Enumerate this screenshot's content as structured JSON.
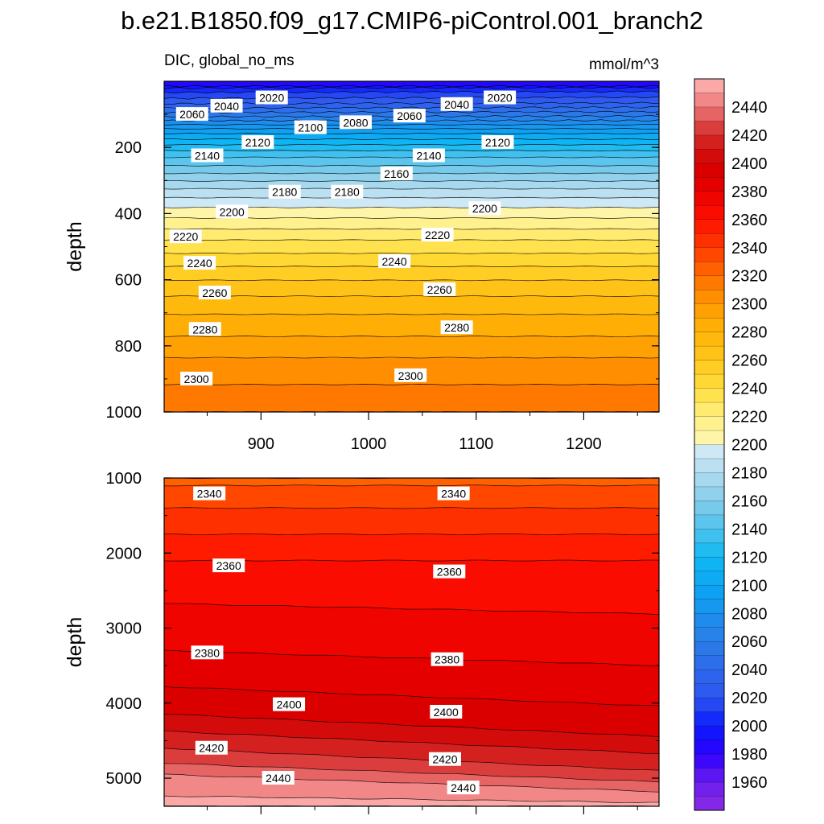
{
  "figure": {
    "title": "b.e21.B1850.f09_g17.CMIP6-piControl.001_branch2",
    "variable_label": "DIC, global_no_ms",
    "units": "mmol/m^3"
  },
  "chart_data": [
    {
      "type": "contour",
      "panel": "upper",
      "variable": "DIC, global_no_ms",
      "units": "mmol/m^3",
      "xlabel": "",
      "ylabel": "depth",
      "xlim": [
        810,
        1270
      ],
      "ylim": [
        1000,
        0
      ],
      "x_ticks": [
        900,
        1000,
        1100,
        1200
      ],
      "y_ticks": [
        200,
        400,
        600,
        800,
        1000
      ],
      "y_tick_labels": [
        "200",
        "400",
        "600",
        "800",
        "1000"
      ],
      "profile": {
        "depth": [
          15,
          25,
          40,
          60,
          80,
          100,
          125,
          150,
          175,
          200,
          230,
          260,
          290,
          325,
          360,
          400,
          440,
          480,
          520,
          560,
          610,
          660,
          710,
          760,
          800,
          850,
          900,
          950,
          1000
        ],
        "value": [
          1995,
          2005,
          2015,
          2025,
          2040,
          2055,
          2075,
          2095,
          2110,
          2125,
          2140,
          2152,
          2165,
          2180,
          2193,
          2206,
          2218,
          2230,
          2240,
          2250,
          2262,
          2272,
          2281,
          2288,
          2295,
          2302,
          2308,
          2314,
          2318
        ]
      },
      "contour_labels": [
        {
          "level": 2020,
          "x": 910,
          "depth": 50
        },
        {
          "level": 2040,
          "x": 868,
          "depth": 75
        },
        {
          "level": 2060,
          "x": 836,
          "depth": 100
        },
        {
          "level": 2020,
          "x": 1122,
          "depth": 50
        },
        {
          "level": 2040,
          "x": 1082,
          "depth": 70
        },
        {
          "level": 2060,
          "x": 1038,
          "depth": 105
        },
        {
          "level": 2080,
          "x": 988,
          "depth": 125
        },
        {
          "level": 2100,
          "x": 946,
          "depth": 140
        },
        {
          "level": 2120,
          "x": 1120,
          "depth": 185
        },
        {
          "level": 2120,
          "x": 897,
          "depth": 185
        },
        {
          "level": 2140,
          "x": 1056,
          "depth": 225
        },
        {
          "level": 2140,
          "x": 850,
          "depth": 225
        },
        {
          "level": 2160,
          "x": 1026,
          "depth": 280
        },
        {
          "level": 2180,
          "x": 922,
          "depth": 335
        },
        {
          "level": 2180,
          "x": 980,
          "depth": 335
        },
        {
          "level": 2200,
          "x": 1108,
          "depth": 385
        },
        {
          "level": 2200,
          "x": 873,
          "depth": 395
        },
        {
          "level": 2220,
          "x": 1064,
          "depth": 465
        },
        {
          "level": 2220,
          "x": 830,
          "depth": 470
        },
        {
          "level": 2240,
          "x": 1024,
          "depth": 545
        },
        {
          "level": 2240,
          "x": 843,
          "depth": 550
        },
        {
          "level": 2260,
          "x": 1066,
          "depth": 630
        },
        {
          "level": 2260,
          "x": 857,
          "depth": 640
        },
        {
          "level": 2280,
          "x": 1082,
          "depth": 745
        },
        {
          "level": 2280,
          "x": 848,
          "depth": 750
        },
        {
          "level": 2300,
          "x": 1039,
          "depth": 890
        },
        {
          "level": 2300,
          "x": 840,
          "depth": 900
        }
      ]
    },
    {
      "type": "contour",
      "panel": "lower",
      "variable": "DIC, global_no_ms",
      "units": "mmol/m^3",
      "xlabel": "",
      "ylabel": "depth",
      "xlim": [
        810,
        1270
      ],
      "ylim": [
        5375,
        1000
      ],
      "x_ticks": [
        900,
        1000,
        1100,
        1200
      ],
      "y_ticks": [
        1000,
        2000,
        3000,
        4000,
        5000
      ],
      "y_tick_labels": [
        "1000",
        "2000",
        "3000",
        "4000",
        "5000"
      ],
      "profile_left": {
        "depth": [
          1000,
          1100,
          1400,
          2100,
          2900,
          3300,
          3700,
          4100,
          4600,
          4800,
          4950,
          5100,
          5375
        ],
        "value": [
          2328,
          2330,
          2340,
          2360,
          2374,
          2380,
          2388,
          2398,
          2420,
          2430,
          2440,
          2448,
          2452
        ]
      },
      "profile_right": {
        "depth": [
          1000,
          1100,
          1400,
          2100,
          3100,
          3500,
          3950,
          4400,
          4900,
          5050,
          5180,
          5280,
          5375
        ],
        "value": [
          2328,
          2330,
          2340,
          2360,
          2374,
          2380,
          2388,
          2398,
          2420,
          2430,
          2440,
          2448,
          2452
        ]
      },
      "contour_labels": [
        {
          "level": 2340,
          "x": 852,
          "depth": 1210
        },
        {
          "level": 2340,
          "x": 1079,
          "depth": 1210
        },
        {
          "level": 2360,
          "x": 870,
          "depth": 2170
        },
        {
          "level": 2360,
          "x": 1075,
          "depth": 2250
        },
        {
          "level": 2380,
          "x": 850,
          "depth": 3330
        },
        {
          "level": 2380,
          "x": 1073,
          "depth": 3420
        },
        {
          "level": 2400,
          "x": 926,
          "depth": 4020
        },
        {
          "level": 2400,
          "x": 1072,
          "depth": 4120
        },
        {
          "level": 2420,
          "x": 854,
          "depth": 4600
        },
        {
          "level": 2420,
          "x": 1071,
          "depth": 4750
        },
        {
          "level": 2440,
          "x": 916,
          "depth": 5000
        },
        {
          "level": 2440,
          "x": 1088,
          "depth": 5130
        }
      ]
    }
  ],
  "colorbar": {
    "labels": [
      "2440",
      "2420",
      "2400",
      "2380",
      "2360",
      "2340",
      "2320",
      "2300",
      "2280",
      "2260",
      "2240",
      "2220",
      "2200",
      "2180",
      "2160",
      "2140",
      "2120",
      "2100",
      "2080",
      "2060",
      "2040",
      "2020",
      "2000",
      "1980",
      "1960"
    ],
    "label_values": [
      2440,
      2420,
      2400,
      2380,
      2360,
      2340,
      2320,
      2300,
      2280,
      2260,
      2240,
      2220,
      2200,
      2180,
      2160,
      2140,
      2120,
      2100,
      2080,
      2060,
      2040,
      2020,
      2000,
      1980,
      1960
    ],
    "vmin": 1940,
    "vmax": 2460,
    "interval": 10,
    "colors": [
      {
        "value": 1940,
        "color": "#8a2be2"
      },
      {
        "value": 1960,
        "color": "#6a1df0"
      },
      {
        "value": 1980,
        "color": "#2c00ff"
      },
      {
        "value": 2000,
        "color": "#0b1cff"
      },
      {
        "value": 2020,
        "color": "#2f55f0"
      },
      {
        "value": 2060,
        "color": "#2b7de8"
      },
      {
        "value": 2100,
        "color": "#0aa6f5"
      },
      {
        "value": 2120,
        "color": "#11b8f2"
      },
      {
        "value": 2140,
        "color": "#4ec2ee"
      },
      {
        "value": 2160,
        "color": "#86cde9"
      },
      {
        "value": 2180,
        "color": "#b0dcf0"
      },
      {
        "value": 2200,
        "color": "#d8ecf7"
      },
      {
        "value": 2201,
        "color": "#fff6b4"
      },
      {
        "value": 2220,
        "color": "#ffef80"
      },
      {
        "value": 2240,
        "color": "#ffdd3c"
      },
      {
        "value": 2260,
        "color": "#ffc81c"
      },
      {
        "value": 2280,
        "color": "#ffb406"
      },
      {
        "value": 2300,
        "color": "#ff9a00"
      },
      {
        "value": 2320,
        "color": "#ff6c00"
      },
      {
        "value": 2340,
        "color": "#ff3a00"
      },
      {
        "value": 2360,
        "color": "#ff1000"
      },
      {
        "value": 2380,
        "color": "#ea0000"
      },
      {
        "value": 2400,
        "color": "#d40000"
      },
      {
        "value": 2420,
        "color": "#d52a2a"
      },
      {
        "value": 2440,
        "color": "#ec7777"
      },
      {
        "value": 2460,
        "color": "#ffb8b8"
      }
    ]
  }
}
